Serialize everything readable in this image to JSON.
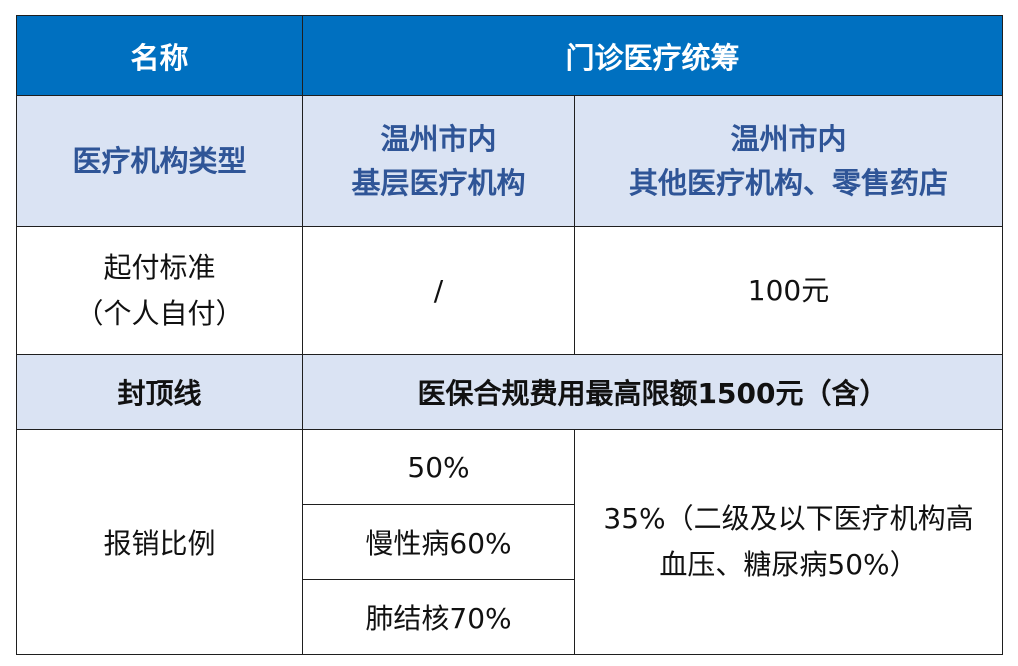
{
  "header": {
    "name": "名称",
    "category": "门诊医疗统筹"
  },
  "institution": {
    "label": "医疗机构类型",
    "col1": [
      "温州市内",
      "基层医疗机构"
    ],
    "col2": [
      "温州市内",
      "其他医疗机构、零售药店"
    ]
  },
  "deductible": {
    "label": [
      "起付标准",
      "（个人自付）"
    ],
    "col1": "/",
    "col2": "100元"
  },
  "cap": {
    "label": "封顶线",
    "value": "医保合规费用最高限额1500元（含）"
  },
  "reimbursement": {
    "label": "报销比例",
    "col1": [
      "50%",
      "慢性病60%",
      "肺结核70%"
    ],
    "col2": [
      "35%（二级及以下医疗机构高",
      "血压、糖尿病50%）"
    ]
  },
  "colors": {
    "header_bg": "#0070c0",
    "light_bg": "#dae3f3",
    "accent_text": "#2f5597"
  }
}
